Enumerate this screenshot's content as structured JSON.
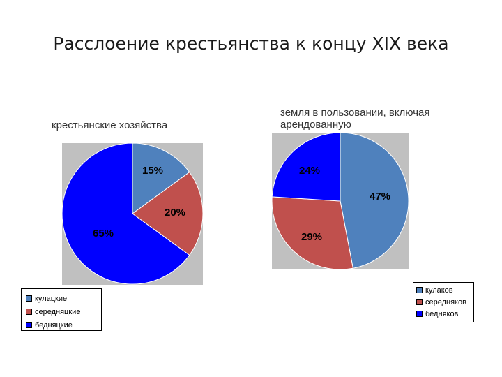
{
  "slide": {
    "title": "Расслоение крестьянства к концу XIX века"
  },
  "colors": {
    "kulak": "#4f81bd",
    "serednyak": "#c0504d",
    "bednyak": "#0000ff",
    "plot_bg": "#c0c0c0"
  },
  "chart_data": [
    {
      "type": "pie",
      "title": "крестьянские хозяйства",
      "categories": [
        "кулацкие",
        "середняцкие",
        "бедняцкие"
      ],
      "values": [
        15,
        20,
        65
      ],
      "labels": [
        "15%",
        "20%",
        "65%"
      ],
      "colors": [
        "#4f81bd",
        "#c0504d",
        "#0000ff"
      ],
      "legend_position": "bottom-left"
    },
    {
      "type": "pie",
      "title": "земля в пользовании, включая арендованную",
      "categories": [
        "кулаков",
        "середняков",
        "бедняков"
      ],
      "values": [
        47,
        29,
        24
      ],
      "labels": [
        "47%",
        "29%",
        "24%"
      ],
      "colors": [
        "#4f81bd",
        "#c0504d",
        "#0000ff"
      ],
      "legend_position": "bottom-right"
    }
  ]
}
